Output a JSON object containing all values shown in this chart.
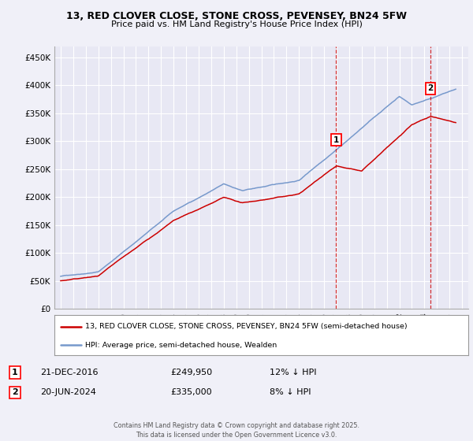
{
  "title": "13, RED CLOVER CLOSE, STONE CROSS, PEVENSEY, BN24 5FW",
  "subtitle": "Price paid vs. HM Land Registry's House Price Index (HPI)",
  "ylabel_ticks": [
    "£0",
    "£50K",
    "£100K",
    "£150K",
    "£200K",
    "£250K",
    "£300K",
    "£350K",
    "£400K",
    "£450K"
  ],
  "ytick_values": [
    0,
    50000,
    100000,
    150000,
    200000,
    250000,
    300000,
    350000,
    400000,
    450000
  ],
  "ylim": [
    0,
    470000
  ],
  "xlim_start": 1994.5,
  "xlim_end": 2027.5,
  "background_color": "#f0f0f8",
  "plot_bg_color": "#e8e8f4",
  "grid_color": "#ffffff",
  "hpi_color": "#7799cc",
  "price_color": "#cc0000",
  "marker1_x": 2016.97,
  "marker1_y": 249950,
  "marker1_label": "1",
  "marker1_date": "21-DEC-2016",
  "marker1_price": "£249,950",
  "marker1_hpi": "12% ↓ HPI",
  "marker2_x": 2024.47,
  "marker2_y": 335000,
  "marker2_label": "2",
  "marker2_date": "20-JUN-2024",
  "marker2_price": "£335,000",
  "marker2_hpi": "8% ↓ HPI",
  "legend_line1": "13, RED CLOVER CLOSE, STONE CROSS, PEVENSEY, BN24 5FW (semi-detached house)",
  "legend_line2": "HPI: Average price, semi-detached house, Wealden",
  "footer": "Contains HM Land Registry data © Crown copyright and database right 2025.\nThis data is licensed under the Open Government Licence v3.0.",
  "xtick_years": [
    1995,
    1996,
    1997,
    1998,
    1999,
    2000,
    2001,
    2002,
    2003,
    2004,
    2005,
    2006,
    2007,
    2008,
    2009,
    2010,
    2011,
    2012,
    2013,
    2014,
    2015,
    2016,
    2017,
    2018,
    2019,
    2020,
    2021,
    2022,
    2023,
    2024,
    2025,
    2026,
    2027
  ]
}
